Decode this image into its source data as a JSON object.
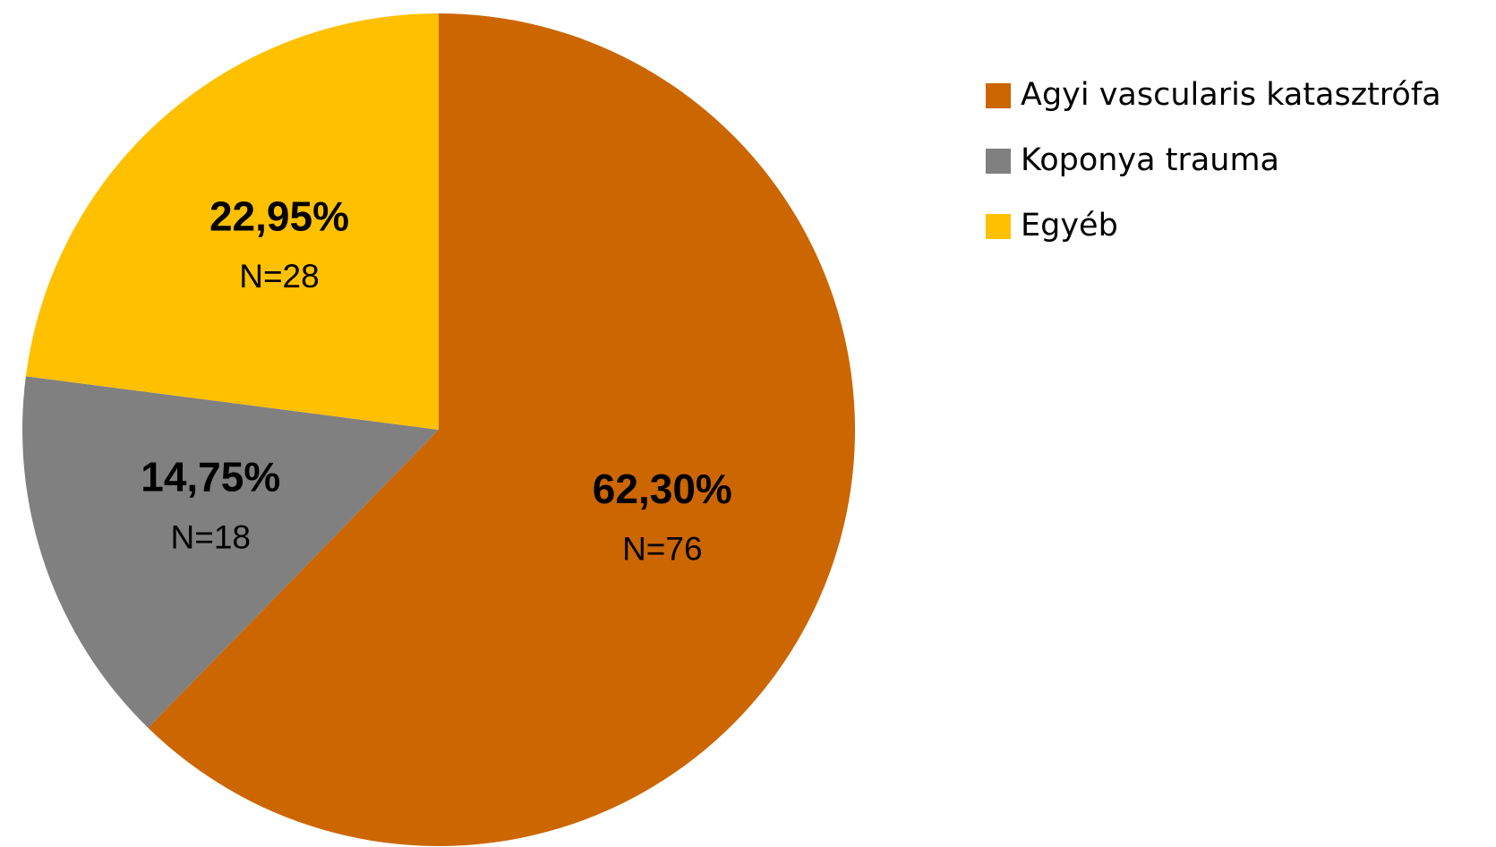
{
  "chart_data": {
    "type": "pie",
    "categories": [
      "Agyi vascularis katasztrófa",
      "Koponya trauma",
      "Egyéb"
    ],
    "values": [
      62.3,
      14.75,
      22.95
    ],
    "value_labels": [
      "62,30%",
      "14,75%",
      "22,95%"
    ],
    "count_labels": [
      "N=76",
      "N=18",
      "N=28"
    ],
    "colors": [
      "#CC6600",
      "#808080",
      "#FFC000"
    ],
    "legend": "right"
  }
}
